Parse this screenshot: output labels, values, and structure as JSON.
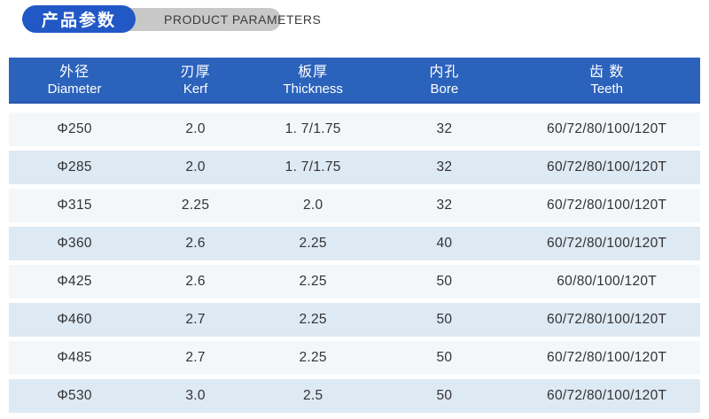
{
  "badge": {
    "title_cn": "产品参数",
    "title_en": "PRODUCT PARAMETERS",
    "pill_color": "#2158c6",
    "ribbon_color": "#c8c8c8"
  },
  "table": {
    "header_bg": "#2b62bc",
    "header_border_color": "#2a55ae",
    "row_light": "#f4f7fa",
    "row_dark": "#dde9f3",
    "columns": [
      {
        "cn": "外径",
        "en": "Diameter"
      },
      {
        "cn": "刃厚",
        "en": "Kerf"
      },
      {
        "cn": "板厚",
        "en": "Thickness"
      },
      {
        "cn": "内孔",
        "en": "Bore"
      },
      {
        "cn": "齿 数",
        "en": "Teeth"
      }
    ],
    "rows": [
      [
        "Φ250",
        "2.0",
        "1. 7/1.75",
        "32",
        "60/72/80/100/120T"
      ],
      [
        "Φ285",
        "2.0",
        "1. 7/1.75",
        "32",
        "60/72/80/100/120T"
      ],
      [
        "Φ315",
        "2.25",
        "2.0",
        "32",
        "60/72/80/100/120T"
      ],
      [
        "Φ360",
        "2.6",
        "2.25",
        "40",
        "60/72/80/100/120T"
      ],
      [
        "Φ425",
        "2.6",
        "2.25",
        "50",
        "60/80/100/120T"
      ],
      [
        "Φ460",
        "2.7",
        "2.25",
        "50",
        "60/72/80/100/120T"
      ],
      [
        "Φ485",
        "2.7",
        "2.25",
        "50",
        "60/72/80/100/120T"
      ],
      [
        "Φ530",
        "3.0",
        "2.5",
        "50",
        "60/72/80/100/120T"
      ]
    ]
  }
}
